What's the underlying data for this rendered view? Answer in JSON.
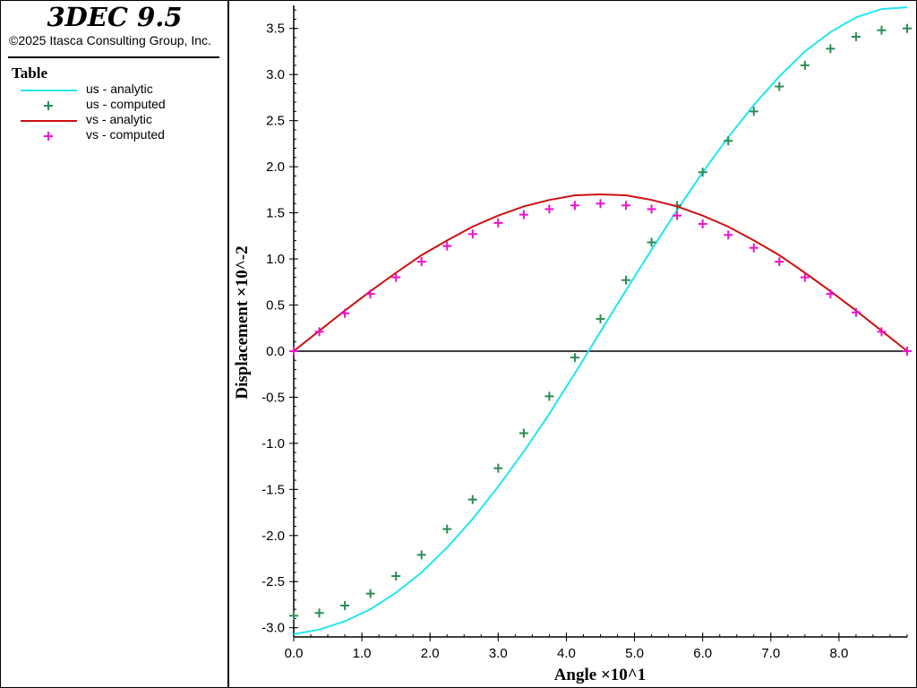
{
  "app": {
    "title": "3DEC 9.5",
    "copyright": "©2025 Itasca Consulting Group, Inc."
  },
  "legend": {
    "title": "Table",
    "entries": [
      {
        "label": "us - analytic",
        "style": "line",
        "color": "#22e6ee"
      },
      {
        "label": "us - computed",
        "style": "plus",
        "color": "#2e8b57"
      },
      {
        "label": "vs - analytic",
        "style": "line",
        "color": "#cc1111"
      },
      {
        "label": "vs - computed",
        "style": "plus",
        "color": "#ee11cc"
      }
    ]
  },
  "chart_data": {
    "type": "line",
    "xlabel": "Angle ×10^1",
    "ylabel": "Displacement ×10^-2",
    "xlim": [
      0,
      9
    ],
    "ylim": [
      -3.1,
      3.75
    ],
    "x_ticks": [
      0,
      1,
      2,
      3,
      4,
      5,
      6,
      7,
      8
    ],
    "x_tick_labels": [
      "0.0",
      "1.0",
      "2.0",
      "3.0",
      "4.0",
      "5.0",
      "6.0",
      "7.0",
      "8.0"
    ],
    "y_ticks": [
      -3,
      -2.5,
      -2,
      -1.5,
      -1,
      -0.5,
      0,
      0.5,
      1,
      1.5,
      2,
      2.5,
      3,
      3.5
    ],
    "y_tick_labels": [
      "-3.0",
      "-2.5",
      "-2.0",
      "-1.5",
      "-1.0",
      "-0.5",
      "0.0",
      "0.5",
      "1.0",
      "1.5",
      "2.0",
      "2.5",
      "3.0",
      "3.5"
    ],
    "zero_line": true,
    "grid": false,
    "series": [
      {
        "name": "us - analytic",
        "style": "line",
        "color": "#22e6ee",
        "x": [
          0,
          0.375,
          0.75,
          1.125,
          1.5,
          1.875,
          2.25,
          2.625,
          3,
          3.375,
          3.75,
          4.125,
          4.5,
          4.875,
          5.25,
          5.625,
          6,
          6.375,
          6.75,
          7.125,
          7.5,
          7.875,
          8.25,
          8.625,
          9
        ],
        "y": [
          -3.07,
          -3.02,
          -2.93,
          -2.8,
          -2.62,
          -2.4,
          -2.13,
          -1.82,
          -1.47,
          -1.09,
          -0.68,
          -0.24,
          0.21,
          0.66,
          1.1,
          1.53,
          1.94,
          2.32,
          2.67,
          2.98,
          3.25,
          3.46,
          3.62,
          3.71,
          3.73
        ]
      },
      {
        "name": "us - computed",
        "style": "plus",
        "color": "#2e8b57",
        "x": [
          0,
          0.375,
          0.75,
          1.125,
          1.5,
          1.875,
          2.25,
          2.625,
          3,
          3.375,
          3.75,
          4.125,
          4.5,
          4.875,
          5.25,
          5.625,
          6,
          6.375,
          6.75,
          7.125,
          7.5,
          7.875,
          8.25,
          8.625,
          9
        ],
        "y": [
          -2.87,
          -2.84,
          -2.76,
          -2.63,
          -2.44,
          -2.21,
          -1.93,
          -1.61,
          -1.27,
          -0.89,
          -0.49,
          -0.07,
          0.35,
          0.77,
          1.18,
          1.58,
          1.94,
          2.28,
          2.6,
          2.87,
          3.1,
          3.28,
          3.41,
          3.48,
          3.5
        ]
      },
      {
        "name": "vs - analytic",
        "style": "line",
        "color": "#cc1111",
        "x": [
          0,
          0.375,
          0.75,
          1.125,
          1.5,
          1.875,
          2.25,
          2.625,
          3,
          3.375,
          3.75,
          4.125,
          4.5,
          4.875,
          5.25,
          5.625,
          6,
          6.375,
          6.75,
          7.125,
          7.5,
          7.875,
          8.25,
          8.625,
          9
        ],
        "y": [
          0,
          0.22,
          0.44,
          0.65,
          0.85,
          1.04,
          1.2,
          1.35,
          1.47,
          1.57,
          1.64,
          1.69,
          1.7,
          1.69,
          1.64,
          1.57,
          1.47,
          1.35,
          1.2,
          1.04,
          0.85,
          0.65,
          0.44,
          0.22,
          0
        ]
      },
      {
        "name": "vs - computed",
        "style": "plus",
        "color": "#ee11cc",
        "x": [
          0,
          0.375,
          0.75,
          1.125,
          1.5,
          1.875,
          2.25,
          2.625,
          3,
          3.375,
          3.75,
          4.125,
          4.5,
          4.875,
          5.25,
          5.625,
          6,
          6.375,
          6.75,
          7.125,
          7.5,
          7.875,
          8.25,
          8.625,
          9
        ],
        "y": [
          0,
          0.21,
          0.41,
          0.62,
          0.8,
          0.97,
          1.14,
          1.27,
          1.39,
          1.48,
          1.54,
          1.58,
          1.6,
          1.58,
          1.54,
          1.47,
          1.38,
          1.26,
          1.12,
          0.97,
          0.8,
          0.62,
          0.42,
          0.21,
          0
        ]
      }
    ]
  }
}
